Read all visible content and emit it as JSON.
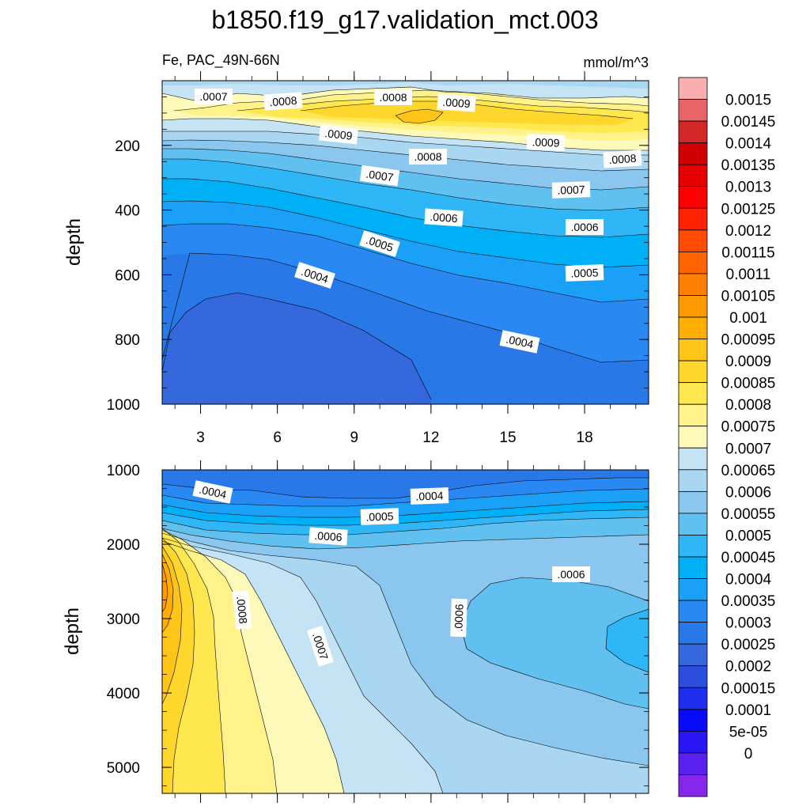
{
  "chart_data": {
    "type": "heatmap",
    "title": "b1850.f19_g17.validation_mct.003",
    "variable_label": "Fe, PAC_49N-66N",
    "units_label": "mmol/m^3",
    "x_ticks": [
      "3",
      "6",
      "9",
      "12",
      "15",
      "18"
    ],
    "x_range": [
      1.5,
      20.5
    ],
    "colorbar": {
      "labels": [
        "0.0015",
        "0.00145",
        "0.0014",
        "0.00135",
        "0.0013",
        "0.00125",
        "0.0012",
        "0.00115",
        "0.0011",
        "0.00105",
        "0.001",
        "0.00095",
        "0.0009",
        "0.00085",
        "0.0008",
        "0.00075",
        "0.0007",
        "0.00065",
        "0.0006",
        "0.00055",
        "0.0005",
        "0.00045",
        "0.0004",
        "0.00035",
        "0.0003",
        "0.00025",
        "0.0002",
        "0.00015",
        "0.0001",
        "5e-05",
        "0"
      ],
      "colors": [
        "#f9aeb0",
        "#e96466",
        "#d42727",
        "#d10000",
        "#e60000",
        "#ff0000",
        "#ff2100",
        "#ff4c00",
        "#ff6400",
        "#ff7f00",
        "#ff9a00",
        "#ffae06",
        "#ffc418",
        "#ffd62b",
        "#ffe84f",
        "#fff28b",
        "#fdf9b8",
        "#c4e4f5",
        "#a9d6f0",
        "#8ac6ee",
        "#60c0f0",
        "#2fb6f6",
        "#00b0f7",
        "#1aa0f7",
        "#2a88f3",
        "#2878e8",
        "#3468dc",
        "#2c4ede",
        "#1e2ff0",
        "#0a0afa",
        "#2a16f5",
        "#5a20ee",
        "#8626ea"
      ]
    },
    "panels": [
      {
        "ylabel": "depth",
        "y_range": [
          0,
          1000
        ],
        "y_ticks": [
          "200",
          "400",
          "600",
          "800",
          "1000"
        ],
        "contour_labels": [
          ".0007",
          ".0008",
          ".0008",
          ".0009",
          ".0009",
          ".0008",
          ".0009",
          ".0008",
          ".0007",
          ".0007",
          ".0006",
          ".0006",
          ".0005",
          ".0005",
          ".0004",
          ".0004"
        ]
      },
      {
        "ylabel": "depth",
        "y_range": [
          1000,
          5350
        ],
        "y_ticks": [
          "1000",
          "2000",
          "3000",
          "4000",
          "5000"
        ],
        "contour_labels": [
          ".0004",
          ".0004",
          ".0005",
          ".0006",
          ".0006",
          ".0008",
          ".0007",
          ".0006"
        ]
      }
    ]
  }
}
